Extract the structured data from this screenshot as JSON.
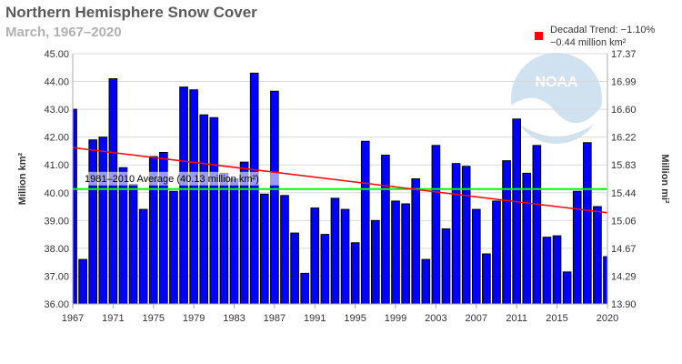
{
  "chart_data": {
    "type": "bar",
    "title": "Northern Hemisphere Snow Cover",
    "subtitle": "March, 1967–2020",
    "ylabel": "Million km²",
    "ylabel_right": "Million mi²",
    "ylim": [
      36.0,
      45.0
    ],
    "yticks": [
      "45.00",
      "44.00",
      "43.00",
      "42.00",
      "41.00",
      "40.00",
      "39.00",
      "38.00",
      "37.00",
      "36.00"
    ],
    "yticks_right": [
      "17.37",
      "16.99",
      "16.60",
      "16.22",
      "15.83",
      "15.44",
      "15.06",
      "14.67",
      "14.29",
      "13.90"
    ],
    "xtick_labels": [
      "1967",
      "1971",
      "1975",
      "1979",
      "1983",
      "1987",
      "1991",
      "1995",
      "1999",
      "2003",
      "2007",
      "2011",
      "2015",
      "2020"
    ],
    "series": [
      {
        "name": "Snow cover",
        "color": "#0000ff",
        "years": [
          1967,
          1968,
          1969,
          1970,
          1971,
          1972,
          1973,
          1974,
          1975,
          1976,
          1977,
          1978,
          1979,
          1980,
          1981,
          1982,
          1983,
          1984,
          1985,
          1986,
          1987,
          1988,
          1989,
          1990,
          1991,
          1992,
          1993,
          1994,
          1995,
          1996,
          1997,
          1998,
          1999,
          2000,
          2001,
          2002,
          2003,
          2004,
          2005,
          2006,
          2007,
          2008,
          2009,
          2010,
          2011,
          2012,
          2013,
          2014,
          2015,
          2016,
          2017,
          2018,
          2019,
          2020
        ],
        "values": [
          43.0,
          37.6,
          41.9,
          42.0,
          44.1,
          40.9,
          40.3,
          39.4,
          41.3,
          41.45,
          40.05,
          43.8,
          43.7,
          42.8,
          42.7,
          40.7,
          40.5,
          41.1,
          44.3,
          39.95,
          43.65,
          39.9,
          38.55,
          37.1,
          39.45,
          38.5,
          39.8,
          39.4,
          38.2,
          41.85,
          39.0,
          41.35,
          39.7,
          39.6,
          40.5,
          37.6,
          41.7,
          38.7,
          41.05,
          40.95,
          39.4,
          37.8,
          39.7,
          41.15,
          42.65,
          40.7,
          41.7,
          38.4,
          38.45,
          37.15,
          40.05,
          41.8,
          39.5,
          37.7
        ]
      }
    ],
    "trend": {
      "name": "Decadal Trend",
      "color": "#ff0000",
      "start": [
        1967,
        41.62
      ],
      "end": [
        2020,
        39.28
      ]
    },
    "average": {
      "label": "1981–2010 Average (40.13 million km²)",
      "value": 40.13,
      "color": "#00ff00"
    },
    "legend": {
      "line1": "Decadal Trend: −1.10%",
      "line2": "−0.44 million km²",
      "position": "top-right"
    }
  },
  "watermark": "NOAA"
}
